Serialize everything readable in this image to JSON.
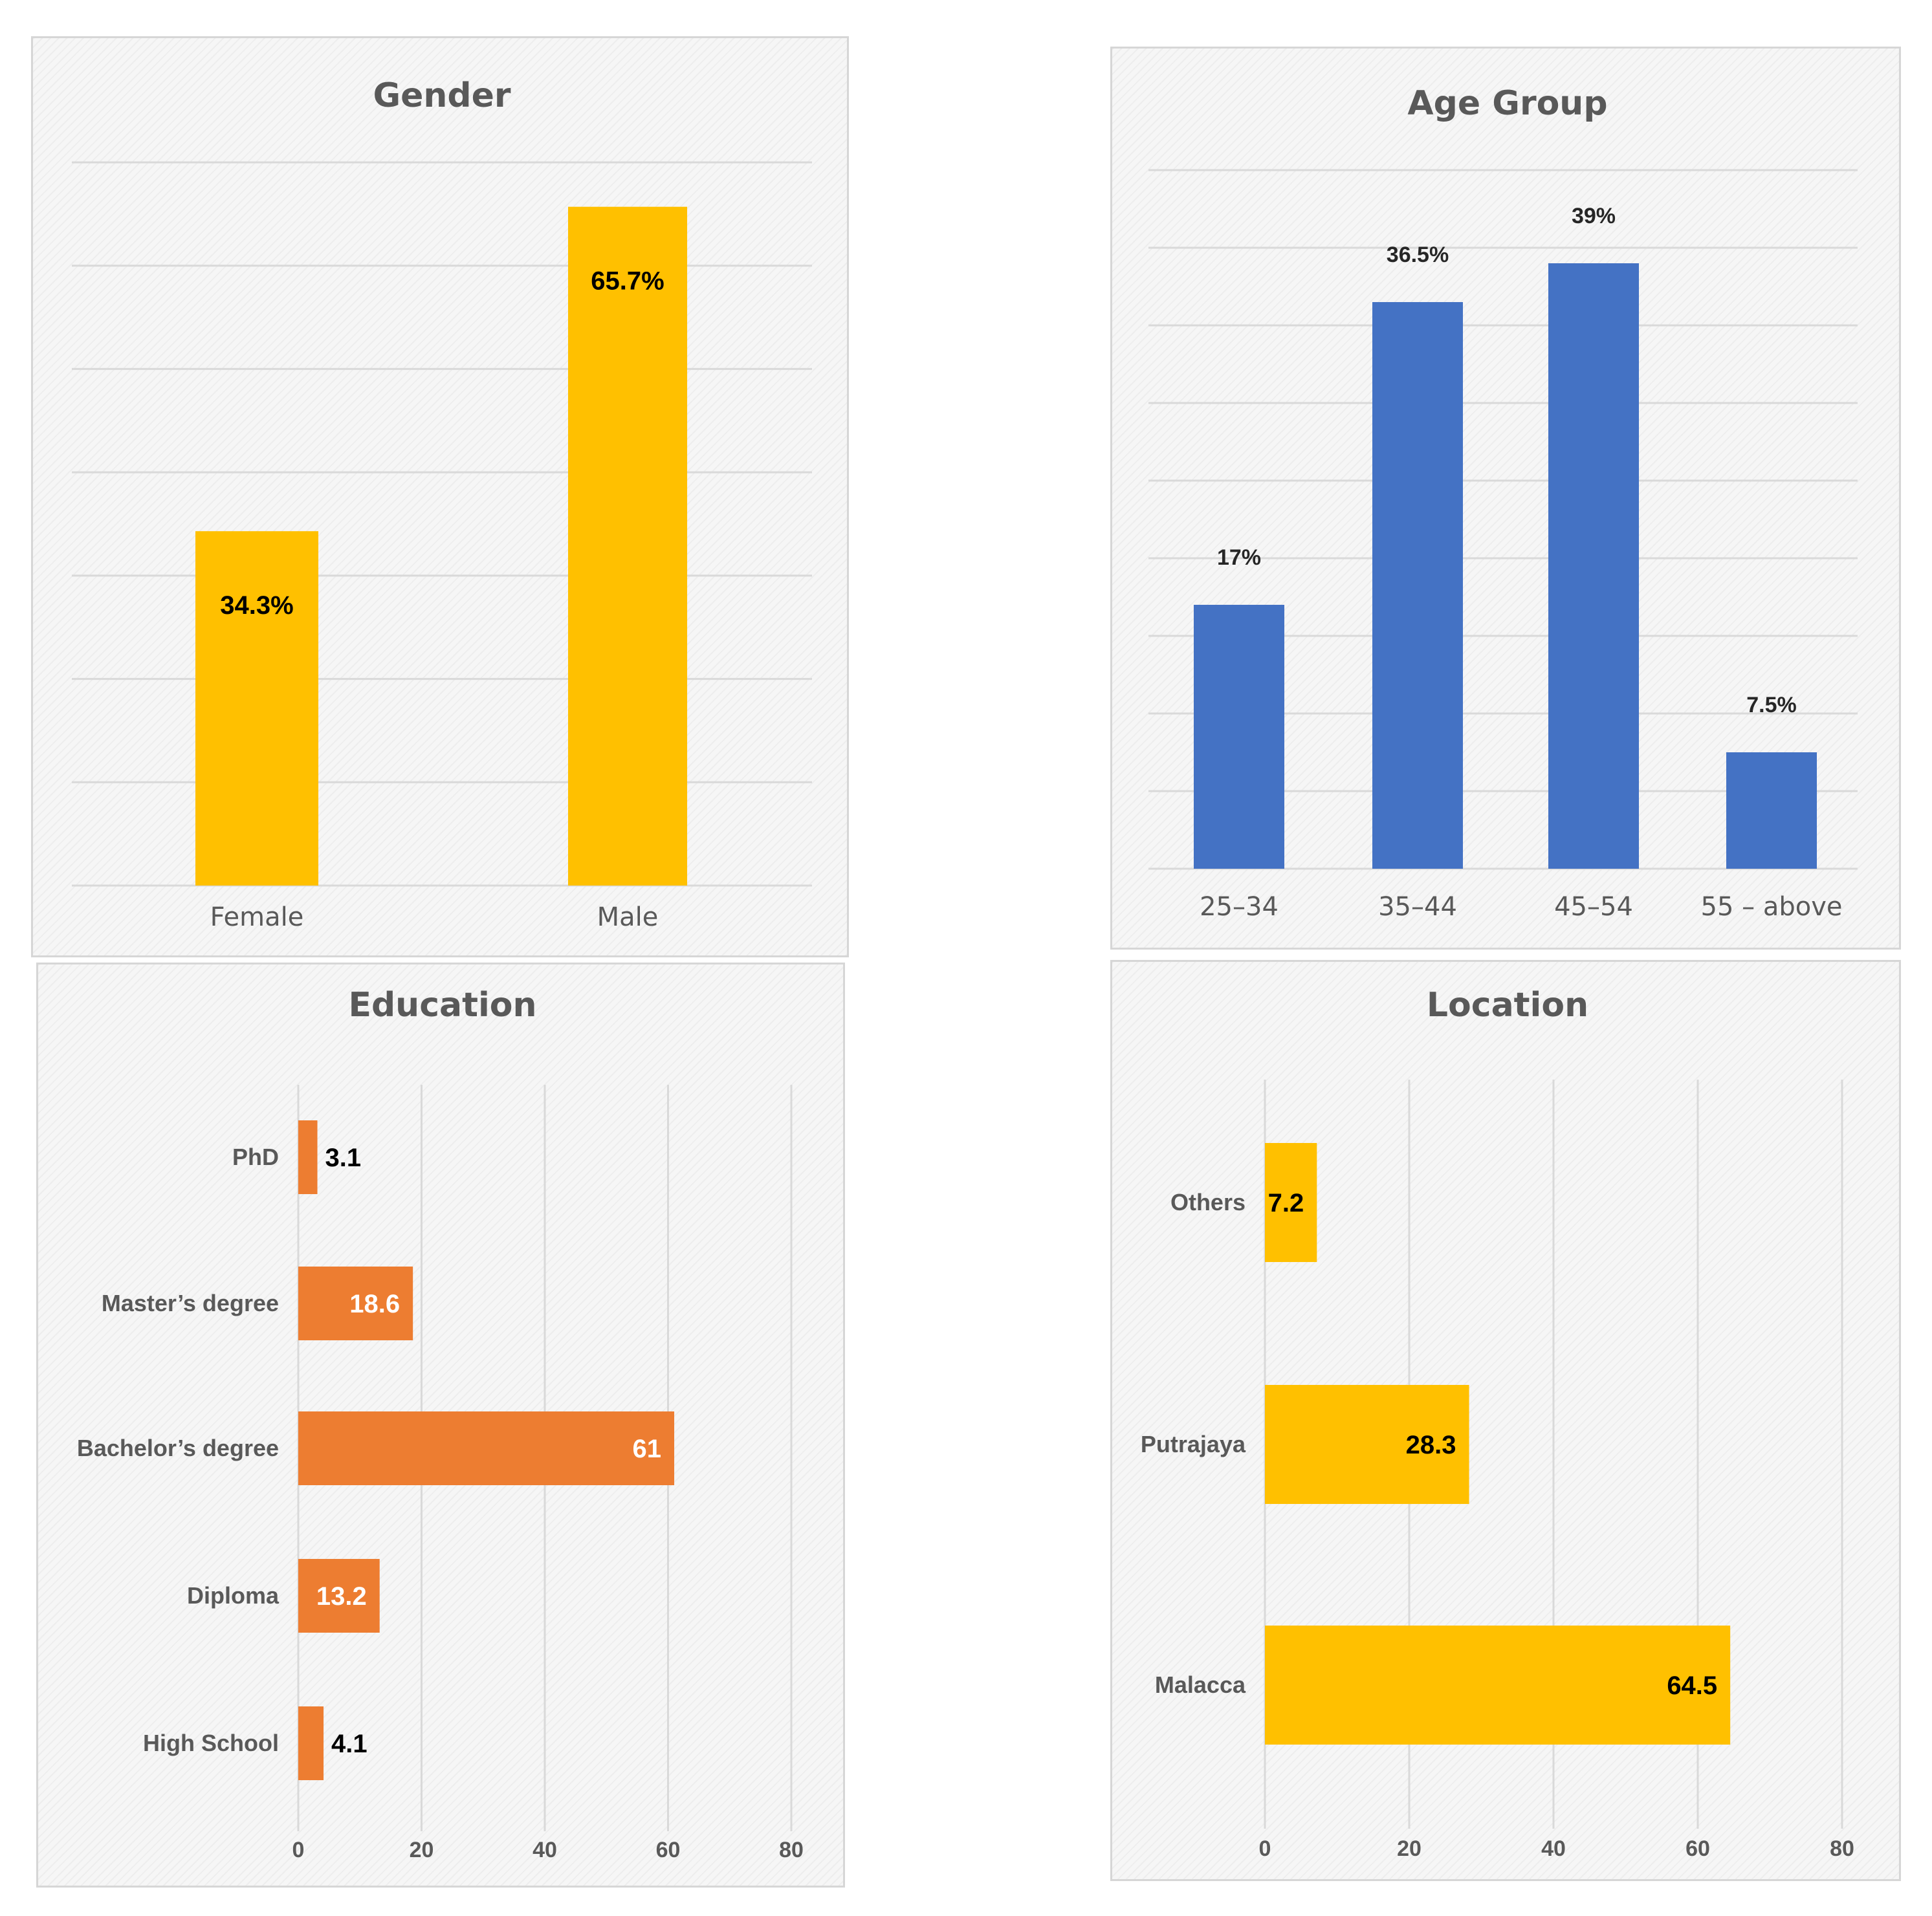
{
  "colors": {
    "gold": "#FFC000",
    "blue": "#4472C4",
    "orange": "#ED7D31",
    "label_dark": "#000000",
    "label_white": "#FFFFFF"
  },
  "chart_data": [
    {
      "id": "gender",
      "type": "bar",
      "orientation": "vertical",
      "title": "Gender",
      "categories": [
        "Female",
        "Male"
      ],
      "values": [
        34.3,
        65.7
      ],
      "data_labels": [
        "34.3%",
        "65.7%"
      ],
      "ylim": [
        0,
        70
      ],
      "grid": true,
      "xlabel": "",
      "ylabel": ""
    },
    {
      "id": "age",
      "type": "bar",
      "orientation": "vertical",
      "title": "Age Group",
      "categories": [
        "25–34",
        "35–44",
        "45–54",
        "55 – above"
      ],
      "values": [
        17,
        36.5,
        39,
        7.5
      ],
      "data_labels": [
        "17%",
        "36.5%",
        "39%",
        "7.5%"
      ],
      "ylim": [
        0,
        45
      ],
      "grid": true,
      "xlabel": "",
      "ylabel": ""
    },
    {
      "id": "education",
      "type": "bar",
      "orientation": "horizontal",
      "title": "Education",
      "categories": [
        "PhD",
        "Master’s degree",
        "Bachelor’s degree",
        "Diploma",
        "High School"
      ],
      "values": [
        3.1,
        18.6,
        61,
        13.2,
        4.1
      ],
      "data_labels": [
        "3.1",
        "18.6",
        "61",
        "13.2",
        "4.1"
      ],
      "xlim": [
        0,
        80
      ],
      "xticks": [
        "0",
        "20",
        "40",
        "60",
        "80"
      ],
      "grid": true,
      "xlabel": "",
      "ylabel": ""
    },
    {
      "id": "location",
      "type": "bar",
      "orientation": "horizontal",
      "title": "Location",
      "categories": [
        "Others",
        "Putrajaya",
        "Malacca"
      ],
      "values": [
        7.2,
        28.3,
        64.5
      ],
      "data_labels": [
        "7.2",
        "28.3",
        "64.5"
      ],
      "xlim": [
        0,
        80
      ],
      "xticks": [
        "0",
        "20",
        "40",
        "60",
        "80"
      ],
      "grid": true,
      "xlabel": "",
      "ylabel": ""
    }
  ]
}
